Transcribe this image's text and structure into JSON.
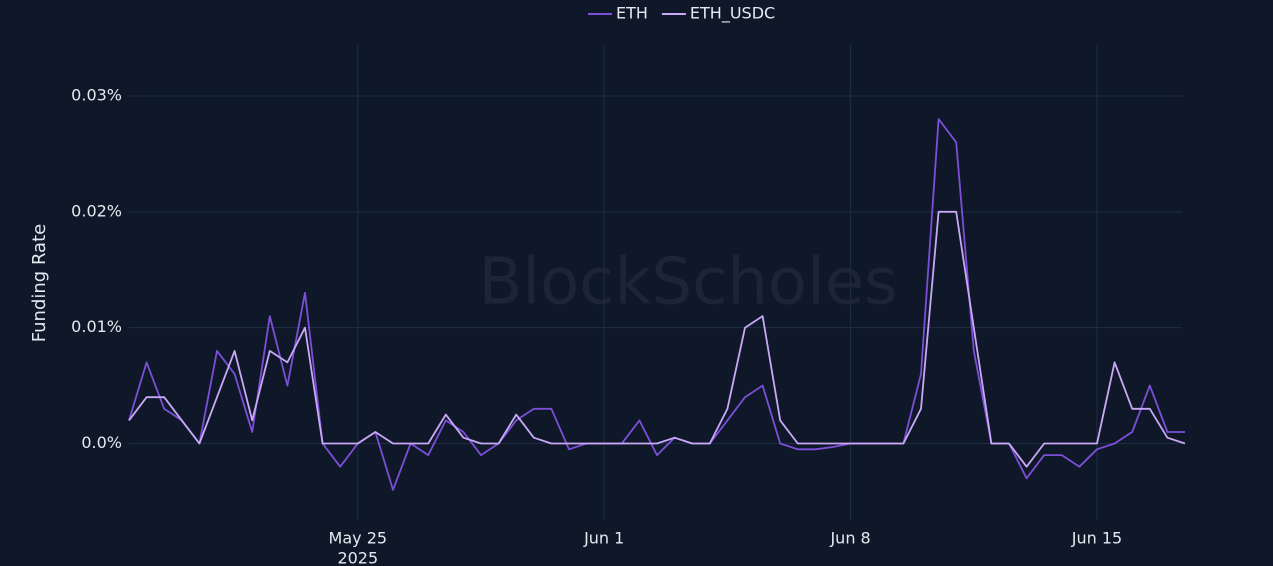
{
  "chart_data": {
    "type": "line",
    "y_label": "Funding Rate",
    "watermark": "BlockScholes",
    "x_year": "2025",
    "legend": "top",
    "grid": true,
    "x": [
      "2025-05-18 12:00",
      "2025-05-19 00:00",
      "2025-05-19 12:00",
      "2025-05-20 00:00",
      "2025-05-20 12:00",
      "2025-05-21 00:00",
      "2025-05-21 12:00",
      "2025-05-22 00:00",
      "2025-05-22 12:00",
      "2025-05-23 00:00",
      "2025-05-23 12:00",
      "2025-05-24 00:00",
      "2025-05-24 12:00",
      "2025-05-25 00:00",
      "2025-05-25 12:00",
      "2025-05-26 00:00",
      "2025-05-26 12:00",
      "2025-05-27 00:00",
      "2025-05-27 12:00",
      "2025-05-28 00:00",
      "2025-05-28 12:00",
      "2025-05-29 00:00",
      "2025-05-29 12:00",
      "2025-05-30 00:00",
      "2025-05-30 12:00",
      "2025-05-31 00:00",
      "2025-05-31 12:00",
      "2025-06-01 00:00",
      "2025-06-01 12:00",
      "2025-06-02 00:00",
      "2025-06-02 12:00",
      "2025-06-03 00:00",
      "2025-06-03 12:00",
      "2025-06-04 00:00",
      "2025-06-04 12:00",
      "2025-06-05 00:00",
      "2025-06-05 12:00",
      "2025-06-06 00:00",
      "2025-06-06 12:00",
      "2025-06-07 00:00",
      "2025-06-07 12:00",
      "2025-06-08 00:00",
      "2025-06-08 12:00",
      "2025-06-09 00:00",
      "2025-06-09 12:00",
      "2025-06-10 00:00",
      "2025-06-10 12:00",
      "2025-06-11 00:00",
      "2025-06-11 12:00",
      "2025-06-12 00:00",
      "2025-06-12 12:00",
      "2025-06-13 00:00",
      "2025-06-13 12:00",
      "2025-06-14 00:00",
      "2025-06-14 12:00",
      "2025-06-15 00:00",
      "2025-06-15 12:00",
      "2025-06-16 00:00",
      "2025-06-16 12:00",
      "2025-06-17 00:00",
      "2025-06-17 12:00"
    ],
    "series": [
      {
        "name": "ETH",
        "color": "#7c4fd8",
        "values": [
          0.002,
          0.007,
          0.003,
          0.002,
          0.0,
          0.008,
          0.006,
          0.001,
          0.011,
          0.005,
          0.013,
          0.0,
          -0.002,
          0.0,
          0.001,
          -0.004,
          0.0,
          -0.001,
          0.002,
          0.001,
          -0.001,
          0.0,
          0.002,
          0.003,
          0.003,
          -0.0005,
          0.0,
          0.0,
          0.0,
          0.002,
          -0.001,
          0.0005,
          0.0,
          0.0,
          0.002,
          0.004,
          0.005,
          0.0,
          -0.0005,
          -0.0005,
          -0.0003,
          0.0,
          0.0,
          0.0,
          0.0,
          0.006,
          0.028,
          0.026,
          0.008,
          0.0,
          0.0,
          -0.003,
          -0.001,
          -0.001,
          -0.002,
          -0.0005,
          0.0,
          0.001,
          0.005,
          0.001,
          0.001
        ]
      },
      {
        "name": "ETH_USDC",
        "color": "#c9a9f6",
        "values": [
          0.002,
          0.004,
          0.004,
          0.002,
          0.0,
          0.004,
          0.008,
          0.002,
          0.008,
          0.007,
          0.01,
          0.0,
          0.0,
          0.0,
          0.001,
          0.0,
          0.0,
          0.0,
          0.0025,
          0.0005,
          0.0,
          0.0,
          0.0025,
          0.0005,
          0.0,
          0.0,
          0.0,
          0.0,
          0.0,
          0.0,
          0.0,
          0.0005,
          0.0,
          0.0,
          0.003,
          0.01,
          0.011,
          0.002,
          0.0,
          0.0,
          0.0,
          0.0,
          0.0,
          0.0,
          0.0,
          0.003,
          0.02,
          0.02,
          0.01,
          0.0,
          0.0,
          -0.002,
          0.0,
          0.0,
          0.0,
          0.0,
          0.007,
          0.003,
          0.003,
          0.0005,
          0.0
        ]
      }
    ],
    "xlim": [
      "2025-05-18 12:00",
      "2025-06-17 12:00"
    ],
    "xticks": [
      {
        "value": "2025-05-25",
        "label": "May 25"
      },
      {
        "value": "2025-06-01",
        "label": "Jun 1"
      },
      {
        "value": "2025-06-08",
        "label": "Jun 8"
      },
      {
        "value": "2025-06-15",
        "label": "Jun 15"
      }
    ],
    "ylim": [
      -0.0066,
      0.0344
    ],
    "yticks": [
      {
        "value": 0,
        "label": "0.0%"
      },
      {
        "value": 0.01,
        "label": "0.01%"
      },
      {
        "value": 0.02,
        "label": "0.02%"
      },
      {
        "value": 0.03,
        "label": "0.03%"
      }
    ]
  }
}
